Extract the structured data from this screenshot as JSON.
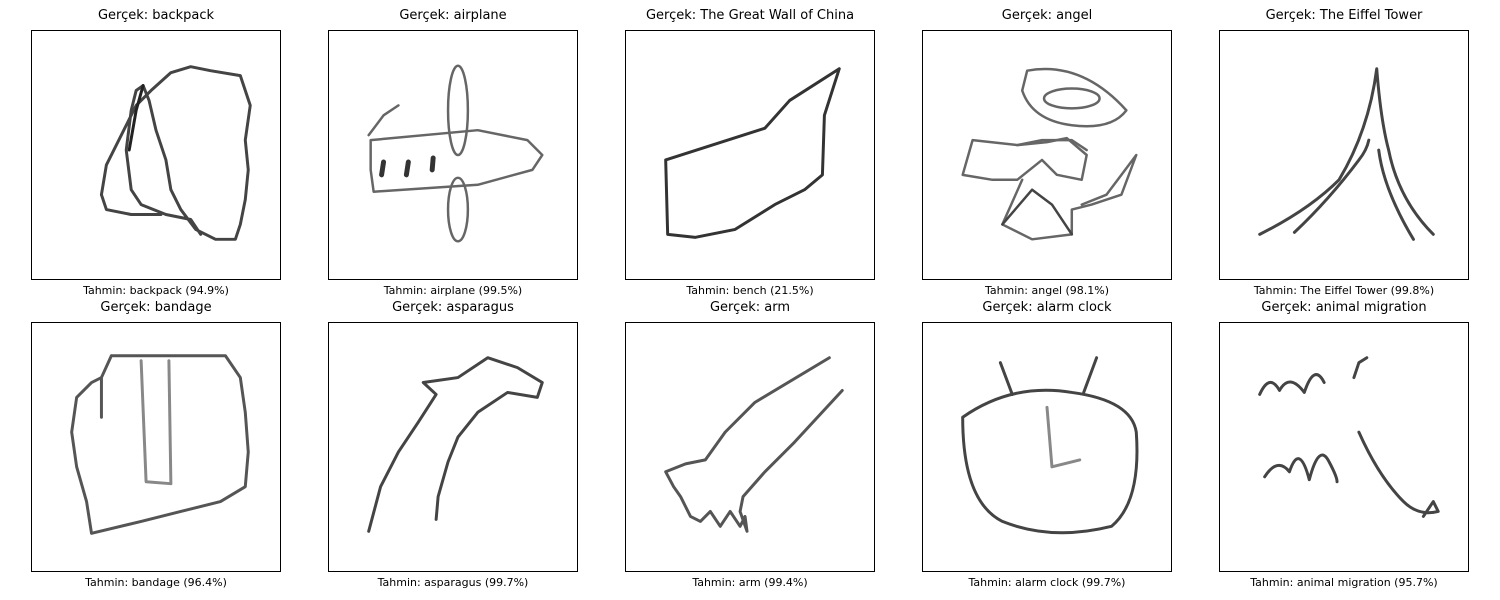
{
  "panels": [
    {
      "title": "Gerçek: backpack",
      "caption": "Tahmin: backpack (94.9%)",
      "icon": "backpack-sketch-icon"
    },
    {
      "title": "Gerçek: airplane",
      "caption": "Tahmin: airplane (99.5%)",
      "icon": "airplane-sketch-icon"
    },
    {
      "title": "Gerçek: The Great Wall of China",
      "caption": "Tahmin: bench (21.5%)",
      "icon": "great-wall-sketch-icon"
    },
    {
      "title": "Gerçek: angel",
      "caption": "Tahmin: angel (98.1%)",
      "icon": "angel-sketch-icon"
    },
    {
      "title": "Gerçek: The Eiffel Tower",
      "caption": "Tahmin: The Eiffel Tower (99.8%)",
      "icon": "eiffel-tower-sketch-icon"
    },
    {
      "title": "Gerçek: bandage",
      "caption": "Tahmin: bandage (96.4%)",
      "icon": "bandage-sketch-icon"
    },
    {
      "title": "Gerçek: asparagus",
      "caption": "Tahmin: asparagus (99.7%)",
      "icon": "asparagus-sketch-icon"
    },
    {
      "title": "Gerçek: arm",
      "caption": "Tahmin: arm (99.4%)",
      "icon": "arm-sketch-icon"
    },
    {
      "title": "Gerçek: alarm clock",
      "caption": "Tahmin: alarm clock (99.7%)",
      "icon": "alarm-clock-sketch-icon"
    },
    {
      "title": "Gerçek: animal migration",
      "caption": "Tahmin: animal migration (95.7%)",
      "icon": "animal-migration-sketch-icon"
    }
  ]
}
